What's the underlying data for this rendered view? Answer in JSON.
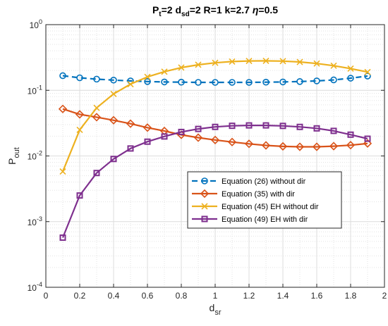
{
  "chart_data": {
    "type": "line",
    "title": {
      "parts": [
        {
          "text": "P",
          "sub": false
        },
        {
          "text": "t",
          "sub": true
        },
        {
          "text": "=2 d",
          "sub": false
        },
        {
          "text": "sd",
          "sub": true
        },
        {
          "text": "=2 R=1 k=2.7 ",
          "sub": false
        },
        {
          "text": "η",
          "sub": false,
          "italic": true
        },
        {
          "text": "=0.5",
          "sub": false
        }
      ]
    },
    "xlabel": {
      "main": "d",
      "sub": "sr"
    },
    "ylabel": {
      "main": "P",
      "sub": "out"
    },
    "xlim": [
      0,
      2
    ],
    "ylim": [
      0.0001,
      1
    ],
    "yscale": "log",
    "grid": true,
    "minor_grid": true,
    "legend_position": "lower-center-right",
    "xticks": [
      "0",
      "0.2",
      "0.4",
      "0.6",
      "0.8",
      "1",
      "1.2",
      "1.4",
      "1.6",
      "1.8",
      "2"
    ],
    "yticks": [
      {
        "value": 0.0001,
        "base": "10",
        "exp": "-4"
      },
      {
        "value": 0.001,
        "base": "10",
        "exp": "-3"
      },
      {
        "value": 0.01,
        "base": "10",
        "exp": "-2"
      },
      {
        "value": 0.1,
        "base": "10",
        "exp": "-1"
      },
      {
        "value": 1,
        "base": "10",
        "exp": "0"
      }
    ],
    "x": [
      0.1,
      0.2,
      0.3,
      0.4,
      0.5,
      0.6,
      0.7,
      0.8,
      0.9,
      1.0,
      1.1,
      1.2,
      1.3,
      1.4,
      1.5,
      1.6,
      1.7,
      1.8,
      1.9
    ],
    "series": [
      {
        "name": "Equation (26) without dir",
        "color": "#0072BD",
        "dashed": true,
        "marker": "circle",
        "values": [
          0.167,
          0.155,
          0.148,
          0.143,
          0.139,
          0.136,
          0.134,
          0.133,
          0.132,
          0.132,
          0.132,
          0.132,
          0.133,
          0.134,
          0.136,
          0.139,
          0.144,
          0.153,
          0.165
        ]
      },
      {
        "name": "Equation (35) with dir",
        "color": "#D95319",
        "dashed": false,
        "marker": "diamond",
        "values": [
          0.052,
          0.043,
          0.039,
          0.035,
          0.031,
          0.027,
          0.024,
          0.021,
          0.019,
          0.0175,
          0.0163,
          0.0153,
          0.0145,
          0.014,
          0.0138,
          0.0138,
          0.0141,
          0.0146,
          0.0155
        ]
      },
      {
        "name": "Equation (45) EH without dir",
        "color": "#EDB120",
        "dashed": false,
        "marker": "x",
        "values": [
          0.0058,
          0.025,
          0.054,
          0.088,
          0.124,
          0.16,
          0.192,
          0.222,
          0.245,
          0.262,
          0.274,
          0.28,
          0.281,
          0.278,
          0.27,
          0.256,
          0.237,
          0.214,
          0.19
        ]
      },
      {
        "name": "Equation (49) EH with dir",
        "color": "#7E2F8E",
        "dashed": false,
        "marker": "square",
        "values": [
          0.00057,
          0.0025,
          0.0055,
          0.009,
          0.013,
          0.0165,
          0.0198,
          0.0232,
          0.0258,
          0.0277,
          0.0288,
          0.0292,
          0.0292,
          0.0287,
          0.0277,
          0.0263,
          0.0241,
          0.0211,
          0.0183
        ]
      }
    ]
  }
}
